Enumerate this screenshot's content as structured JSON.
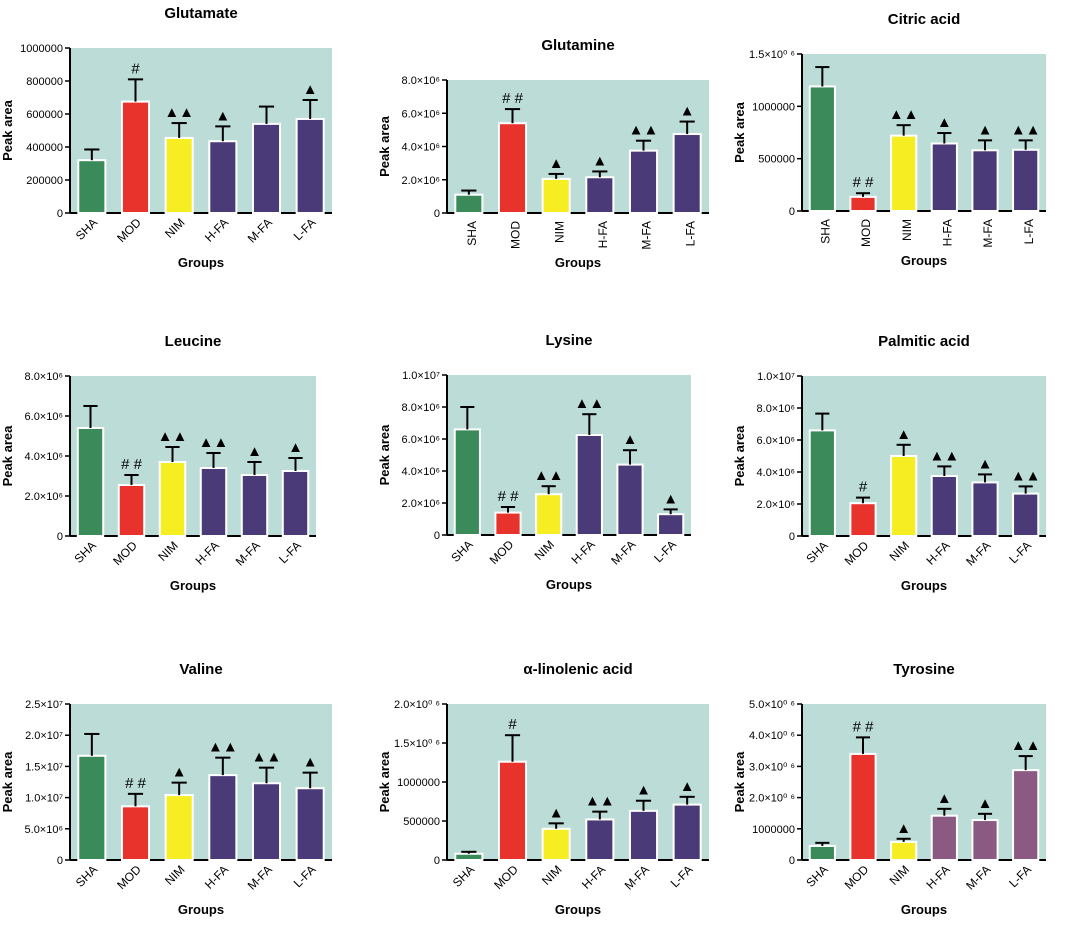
{
  "colors": {
    "panel_bg": "#bcdcd7",
    "SHA": "#3a8a5a",
    "MOD": "#e8322c",
    "NIM": "#f6ee23",
    "FA": "#4b3a78",
    "FA_light": "#8a5a82",
    "axis": "#000000",
    "error": "#000000"
  },
  "chart_data": [
    {
      "type": "bar",
      "title": "Glutamate",
      "xlabel": "Groups",
      "ylabel": "Peak area",
      "categories": [
        "SHA",
        "MOD",
        "NIM",
        "H-FA",
        "M-FA",
        "L-FA"
      ],
      "values": [
        320000,
        675000,
        455000,
        435000,
        540000,
        570000
      ],
      "errors": [
        65000,
        135000,
        90000,
        90000,
        105000,
        115000
      ],
      "annotations": [
        "",
        "#",
        "▲▲",
        "▲",
        "",
        "▲"
      ],
      "ylim": [
        0,
        1000000
      ],
      "yticks": [
        0,
        200000,
        400000,
        600000,
        800000,
        1000000
      ],
      "ytick_labels": [
        "0",
        "200000",
        "400000",
        "600000",
        "800000",
        "1000000"
      ],
      "bar_colors": [
        "SHA",
        "MOD",
        "NIM",
        "FA",
        "FA",
        "FA"
      ],
      "tick_rotation": 45
    },
    {
      "type": "bar",
      "title": "Glutamine",
      "xlabel": "Groups",
      "ylabel": "Peak area",
      "categories": [
        "SHA",
        "MOD",
        "NIM",
        "H-FA",
        "M-FA",
        "L-FA"
      ],
      "values": [
        1100000,
        5400000,
        2050000,
        2150000,
        3750000,
        4750000
      ],
      "errors": [
        250000,
        850000,
        300000,
        350000,
        600000,
        750000
      ],
      "annotations": [
        "",
        "# #",
        "▲",
        "▲",
        "▲▲",
        "▲"
      ],
      "ylim": [
        0,
        8000000
      ],
      "yticks": [
        0,
        2000000,
        4000000,
        6000000,
        8000000
      ],
      "ytick_labels": [
        "0",
        "2.0×10⁶",
        "4.0×10⁶",
        "6.0×10⁶",
        "8.0×10⁶"
      ],
      "bar_colors": [
        "SHA",
        "MOD",
        "NIM",
        "FA",
        "FA",
        "FA"
      ],
      "tick_rotation": 90
    },
    {
      "type": "bar",
      "title": "Citric acid",
      "xlabel": "Groups",
      "ylabel": "Peak area",
      "categories": [
        "SHA",
        "MOD",
        "NIM",
        "H-FA",
        "M-FA",
        "L-FA"
      ],
      "values": [
        1190000,
        135000,
        720000,
        645000,
        580000,
        585000
      ],
      "errors": [
        185000,
        35000,
        100000,
        100000,
        95000,
        90000
      ],
      "annotations": [
        "",
        "# #",
        "▲▲",
        "▲",
        "▲",
        "▲▲"
      ],
      "ylim": [
        0,
        1500000
      ],
      "yticks": [
        0,
        500000,
        1000000,
        1500000
      ],
      "ytick_labels": [
        "0",
        "500000",
        "1000000",
        "1.5×10⁰ ⁶"
      ],
      "bar_colors": [
        "SHA",
        "MOD",
        "NIM",
        "FA",
        "FA",
        "FA"
      ],
      "tick_rotation": 90
    },
    {
      "type": "bar",
      "title": "Leucine",
      "xlabel": "Groups",
      "ylabel": "Peak area",
      "categories": [
        "SHA",
        "MOD",
        "NIM",
        "H-FA",
        "M-FA",
        "L-FA"
      ],
      "values": [
        5400000,
        2550000,
        3700000,
        3400000,
        3050000,
        3250000
      ],
      "errors": [
        1100000,
        500000,
        750000,
        750000,
        650000,
        650000
      ],
      "annotations": [
        "",
        "# #",
        "▲▲",
        "▲▲",
        "▲",
        "▲"
      ],
      "ylim": [
        0,
        8000000
      ],
      "yticks": [
        0,
        2000000,
        4000000,
        6000000,
        8000000
      ],
      "ytick_labels": [
        "0",
        "2.0×10⁶",
        "4.0×10⁶",
        "6.0×10⁶",
        "8.0×10⁶"
      ],
      "bar_colors": [
        "SHA",
        "MOD",
        "NIM",
        "FA",
        "FA",
        "FA"
      ],
      "tick_rotation": 45
    },
    {
      "type": "bar",
      "title": "Lysine",
      "xlabel": "Groups",
      "ylabel": "Peak area",
      "categories": [
        "SHA",
        "MOD",
        "NIM",
        "H-FA",
        "M-FA",
        "L-FA"
      ],
      "values": [
        6600000,
        1400000,
        2550000,
        6250000,
        4400000,
        1300000
      ],
      "errors": [
        1400000,
        350000,
        500000,
        1300000,
        900000,
        300000
      ],
      "annotations": [
        "",
        "# #",
        "▲▲",
        "▲▲",
        "▲",
        "▲"
      ],
      "ylim": [
        0,
        10000000
      ],
      "yticks": [
        0,
        2000000,
        4000000,
        6000000,
        8000000,
        10000000
      ],
      "ytick_labels": [
        "0",
        "2.0×10⁶",
        "4.0×10⁶",
        "6.0×10⁶",
        "8.0×10⁶",
        "1.0×10⁷"
      ],
      "bar_colors": [
        "SHA",
        "MOD",
        "NIM",
        "FA",
        "FA",
        "FA"
      ],
      "tick_rotation": 45
    },
    {
      "type": "bar",
      "title": "Palmitic acid",
      "xlabel": "Groups",
      "ylabel": "Peak area",
      "categories": [
        "SHA",
        "MOD",
        "NIM",
        "H-FA",
        "M-FA",
        "L-FA"
      ],
      "values": [
        6600000,
        2050000,
        5000000,
        3750000,
        3350000,
        2650000
      ],
      "errors": [
        1050000,
        350000,
        700000,
        600000,
        500000,
        450000
      ],
      "annotations": [
        "",
        "#",
        "▲",
        "▲▲",
        "▲",
        "▲▲"
      ],
      "ylim": [
        0,
        10000000
      ],
      "yticks": [
        0,
        2000000,
        4000000,
        6000000,
        8000000,
        10000000
      ],
      "ytick_labels": [
        "0",
        "2.0×10⁶",
        "4.0×10⁶",
        "6.0×10⁶",
        "8.0×10⁶",
        "1.0×10⁷"
      ],
      "bar_colors": [
        "SHA",
        "MOD",
        "NIM",
        "FA",
        "FA",
        "FA"
      ],
      "tick_rotation": 45
    },
    {
      "type": "bar",
      "title": "Valine",
      "xlabel": "Groups",
      "ylabel": "Peak area",
      "categories": [
        "SHA",
        "MOD",
        "NIM",
        "H-FA",
        "M-FA",
        "L-FA"
      ],
      "values": [
        16700000,
        8600000,
        10400000,
        13600000,
        12300000,
        11500000
      ],
      "errors": [
        3500000,
        2000000,
        2000000,
        2800000,
        2500000,
        2500000
      ],
      "annotations": [
        "",
        "# #",
        "▲",
        "▲▲",
        "▲▲",
        "▲"
      ],
      "ylim": [
        0,
        25000000
      ],
      "yticks": [
        0,
        5000000,
        10000000,
        15000000,
        20000000,
        25000000
      ],
      "ytick_labels": [
        "0",
        "5.0×10⁶",
        "1.0×10⁷",
        "1.5×10⁷",
        "2.0×10⁷",
        "2.5×10⁷"
      ],
      "bar_colors": [
        "SHA",
        "MOD",
        "NIM",
        "FA",
        "FA",
        "FA"
      ],
      "tick_rotation": 45
    },
    {
      "type": "bar",
      "title": "α-linolenic acid",
      "xlabel": "Groups",
      "ylabel": "Peak area",
      "categories": [
        "SHA",
        "MOD",
        "NIM",
        "H-FA",
        "M-FA",
        "L-FA"
      ],
      "values": [
        80000,
        1260000,
        400000,
        520000,
        630000,
        710000
      ],
      "errors": [
        25000,
        340000,
        70000,
        100000,
        130000,
        100000
      ],
      "annotations": [
        "",
        "#",
        "▲",
        "▲▲",
        "▲",
        "▲"
      ],
      "ylim": [
        0,
        2000000
      ],
      "yticks": [
        0,
        500000,
        1000000,
        1500000,
        2000000
      ],
      "ytick_labels": [
        "0",
        "500000",
        "1000000",
        "1.5×10⁰ ⁶",
        "2.0×10⁰ ⁶"
      ],
      "bar_colors": [
        "SHA",
        "MOD",
        "NIM",
        "FA",
        "FA",
        "FA"
      ],
      "tick_rotation": 45
    },
    {
      "type": "bar",
      "title": "Tyrosine",
      "xlabel": "Groups",
      "ylabel": "Peak area",
      "categories": [
        "SHA",
        "MOD",
        "NIM",
        "H-FA",
        "M-FA",
        "L-FA"
      ],
      "values": [
        450000,
        3400000,
        580000,
        1420000,
        1280000,
        2880000
      ],
      "errors": [
        100000,
        530000,
        100000,
        220000,
        200000,
        450000
      ],
      "annotations": [
        "",
        "# #",
        "▲",
        "▲",
        "▲",
        "▲▲"
      ],
      "ylim": [
        0,
        5000000
      ],
      "yticks": [
        0,
        1000000,
        2000000,
        3000000,
        4000000,
        5000000
      ],
      "ytick_labels": [
        "0",
        "1000000",
        "2.0×10⁰ ⁶",
        "3.0×10⁰ ⁶",
        "4.0×10⁰ ⁶",
        "5.0×10⁰ ⁶"
      ],
      "bar_colors": [
        "SHA",
        "MOD",
        "NIM",
        "FA_light",
        "FA_light",
        "FA_light"
      ],
      "tick_rotation": 45
    }
  ]
}
